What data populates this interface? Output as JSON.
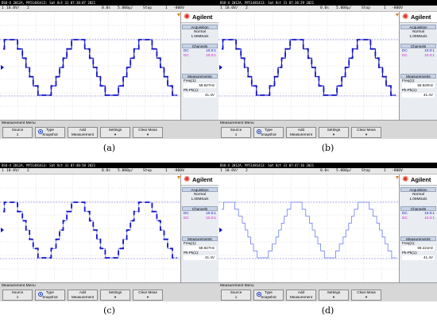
{
  "panels": [
    {
      "title": "DSO-X 2012A, MY51481413: Sat Oct 31 07:38:07 2021",
      "status": {
        "ch": "1",
        "scale": "10.0V/",
        "ch2": "2",
        "delay": "0.0s",
        "timebase": "5.000µ/",
        "state": "Stop",
        "trig": "1",
        "trig_level": "-800V"
      },
      "brand": "Agilent",
      "acquisition": {
        "header": "Acquisition",
        "mode": "Normal",
        "rate": "1.00MSa/s"
      },
      "channels": {
        "header": "Channels",
        "dc1": "DC",
        "dc1_val": "10.0:1",
        "dc2": "DC",
        "dc2_val": "10.0:1"
      },
      "measurements": {
        "header": "Measurements",
        "freq_label": "Freq(1):",
        "freq_value": "59.927Hz",
        "pk_label": "Pk-Pk(1):",
        "pk_value": "41.4V"
      },
      "menu": {
        "title": "Measurement Menu",
        "source": "Source",
        "source_val": "1",
        "type": "Type",
        "type_val": "Snapshot",
        "add": "Add",
        "add_sub": "Measurement",
        "settings": "Settings",
        "clear": "Clear Meas"
      },
      "caption": "(a)"
    },
    {
      "title": "DSO-X 2012A, MY51481413: Sat Oct 31 07:38:29 2021",
      "status": {
        "ch": "1",
        "scale": "10.0V/",
        "ch2": "2",
        "delay": "0.0s",
        "timebase": "5.000µ/",
        "state": "Stop",
        "trig": "1",
        "trig_level": "-800V"
      },
      "brand": "Agilent",
      "acquisition": {
        "header": "Acquisition",
        "mode": "Normal",
        "rate": "1.00MSa/s"
      },
      "channels": {
        "header": "Channels",
        "dc1": "DC",
        "dc1_val": "10.0:1",
        "dc2": "DC",
        "dc2_val": "10.0:1"
      },
      "measurements": {
        "header": "Measurements",
        "freq_label": "Freq(1):",
        "freq_value": "59.920Hz",
        "pk_label": "Pk-Pk(1):",
        "pk_value": "41.4V"
      },
      "menu": {
        "title": "Measurement Menu",
        "source": "Source",
        "source_val": "1",
        "type": "Type",
        "type_val": "Snapshot",
        "add": "Add",
        "add_sub": "Measurement",
        "settings": "Settings",
        "clear": "Clear Meas"
      },
      "caption": "(b)"
    },
    {
      "title": "DSO-X 2012A, MY51481413: Sat Oct 31 07:40:58 2021",
      "status": {
        "ch": "1",
        "scale": "10.0V/",
        "ch2": "2",
        "delay": "0.0s",
        "timebase": "5.000µ/",
        "state": "Stop",
        "trig": "1",
        "trig_level": "-800V"
      },
      "brand": "Agilent",
      "acquisition": {
        "header": "Acquisition",
        "mode": "Normal",
        "rate": "1.00MSa/s"
      },
      "channels": {
        "header": "Channels",
        "dc1": "DC",
        "dc1_val": "10.0:1",
        "dc2": "DC",
        "dc2_val": "10.0:1"
      },
      "measurements": {
        "header": "Measurements",
        "freq_label": "Freq(1):",
        "freq_value": "59.927Hz",
        "pk_label": "Pk-Pk(1):",
        "pk_value": "41.4V"
      },
      "menu": {
        "title": "Measurement Menu",
        "source": "Source",
        "source_val": "1",
        "type": "Type",
        "type_val": "Snapshot",
        "add": "Add",
        "add_sub": "Measurement",
        "settings": "Settings",
        "clear": "Clear Meas"
      },
      "caption": "(c)"
    },
    {
      "title": "DSO-X 2012A, MY51481413: Sat Oct 31 07:47:16 2021",
      "status": {
        "ch": "1",
        "scale": "10.0V/",
        "ch2": "2",
        "delay": "0.0s",
        "timebase": "5.000µ/",
        "state": "Stop",
        "trig": "1",
        "trig_level": "-800V"
      },
      "brand": "Agilent",
      "acquisition": {
        "header": "Acquisition",
        "mode": "Normal",
        "rate": "1.00MSa/s"
      },
      "channels": {
        "header": "Channels",
        "dc1": "DC",
        "dc1_val": "10.0:1",
        "dc2": "DC",
        "dc2_val": "10.0:1"
      },
      "measurements": {
        "header": "Measurements",
        "freq_label": "Freq(1):",
        "freq_value": "59.221Hz",
        "pk_label": "Pk-Pk(1):",
        "pk_value": "41.4V"
      },
      "menu": {
        "title": "Measurement Menu",
        "source": "Source",
        "source_val": "1",
        "type": "Type",
        "type_val": "Snapshot",
        "add": "Add",
        "add_sub": "Measurement",
        "settings": "Settings",
        "clear": "Clear Meas"
      },
      "caption": "(d)"
    }
  ],
  "colors": {
    "trace": "#1414c8",
    "trace_light": "#6f7ff0",
    "grid": "#c9c9c9",
    "cursor": "#5a5ad2",
    "dc2_label": "#d020d0",
    "brand_star": "#e03020"
  }
}
